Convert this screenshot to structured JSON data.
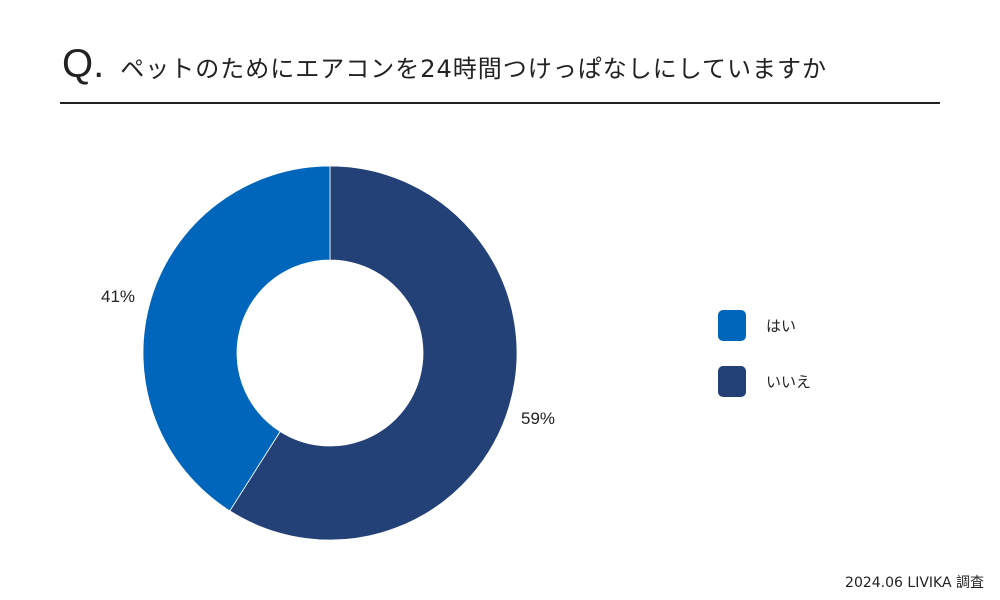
{
  "header": {
    "q_mark": "Q.",
    "question": "ペットのためにエアコンを24時間つけっぱなしにしていますか"
  },
  "labels": {
    "yes_pct": "41%",
    "no_pct": "59%"
  },
  "legend": [
    {
      "label": "はい",
      "color": "#0066BB"
    },
    {
      "label": "いいえ",
      "color": "#244177"
    }
  ],
  "source": "2024.06 LIVIKA 調査",
  "chart_data": {
    "type": "pie",
    "subtype": "donut",
    "title": "ペットのためにエアコンを24時間つけっぱなしにしていますか",
    "categories": [
      "はい",
      "いいえ"
    ],
    "values": [
      41,
      59
    ],
    "unit": "%",
    "colors": [
      "#0066BB",
      "#244177"
    ],
    "legend_position": "right",
    "start_angle": "12 o'clock",
    "direction": "いいえ clockwise from top, はい counter-clockwise",
    "source": "2024.06 LIVIKA 調査"
  }
}
